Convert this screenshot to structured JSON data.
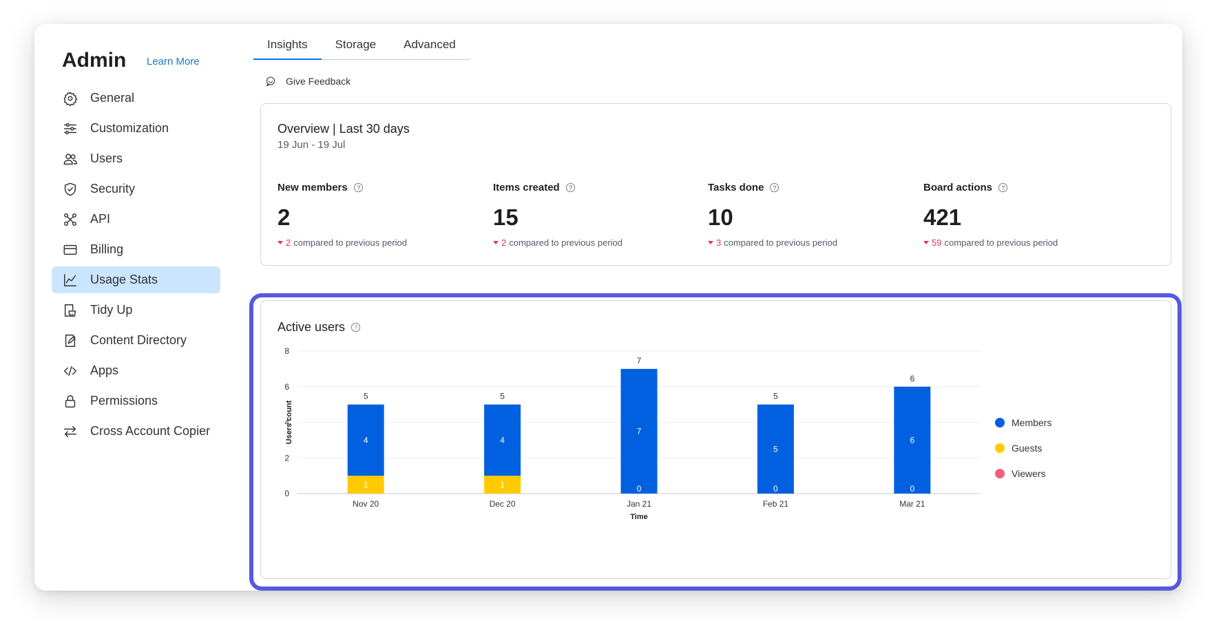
{
  "sidebar": {
    "title": "Admin",
    "learn_more": "Learn More",
    "items": [
      {
        "label": "General",
        "icon": "gear-icon"
      },
      {
        "label": "Customization",
        "icon": "sliders-icon"
      },
      {
        "label": "Users",
        "icon": "users-icon"
      },
      {
        "label": "Security",
        "icon": "shield-icon"
      },
      {
        "label": "API",
        "icon": "api-icon"
      },
      {
        "label": "Billing",
        "icon": "card-icon"
      },
      {
        "label": "Usage Stats",
        "icon": "chart-icon",
        "active": true
      },
      {
        "label": "Tidy Up",
        "icon": "broom-icon"
      },
      {
        "label": "Content Directory",
        "icon": "document-icon"
      },
      {
        "label": "Apps",
        "icon": "code-icon"
      },
      {
        "label": "Permissions",
        "icon": "lock-icon"
      },
      {
        "label": "Cross Account Copier",
        "icon": "arrows-icon"
      }
    ]
  },
  "tabs": [
    {
      "label": "Insights",
      "active": true
    },
    {
      "label": "Storage"
    },
    {
      "label": "Advanced"
    }
  ],
  "feedback_label": "Give Feedback",
  "overview": {
    "title": "Overview | Last 30 days",
    "range": "19 Jun - 19 Jul",
    "compare_text": "compared to previous period",
    "stats": [
      {
        "label": "New members",
        "value": "2",
        "delta": "2"
      },
      {
        "label": "Items created",
        "value": "15",
        "delta": "2"
      },
      {
        "label": "Tasks done",
        "value": "10",
        "delta": "3"
      },
      {
        "label": "Board actions",
        "value": "421",
        "delta": "59"
      }
    ]
  },
  "active_users": {
    "title": "Active users"
  },
  "colors": {
    "members": "#0060e0",
    "guests": "#ffcb00",
    "viewers": "#f65f7c",
    "accent": "#5559df"
  },
  "chart_data": {
    "type": "bar",
    "stacked": true,
    "categories": [
      "Nov 20",
      "Dec 20",
      "Jan 21",
      "Feb 21",
      "Mar 21"
    ],
    "series": [
      {
        "name": "Members",
        "values": [
          4,
          4,
          7,
          5,
          6
        ]
      },
      {
        "name": "Guests",
        "values": [
          1,
          1,
          0,
          0,
          0
        ]
      },
      {
        "name": "Viewers",
        "values": [
          0,
          0,
          0,
          0,
          0
        ]
      }
    ],
    "totals": [
      5,
      5,
      7,
      5,
      6
    ],
    "xlabel": "Time",
    "ylabel": "Users count",
    "ylim": [
      0,
      8
    ],
    "yticks": [
      0,
      2,
      4,
      6,
      8
    ],
    "legend_position": "right",
    "grid": true
  }
}
